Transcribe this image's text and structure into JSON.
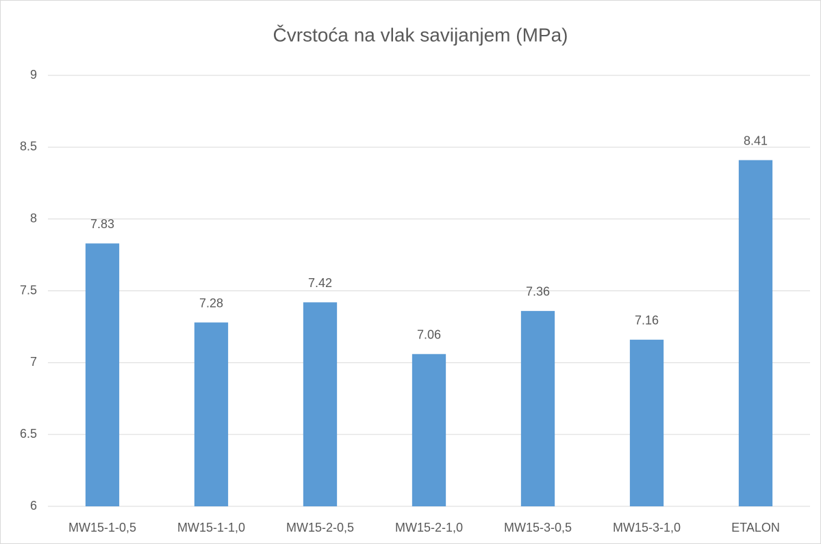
{
  "chart_data": {
    "type": "bar",
    "title": "Čvrstoća na vlak savijanjem (MPa)",
    "categories": [
      "MW15-1-0,5",
      "MW15-1-1,0",
      "MW15-2-0,5",
      "MW15-2-1,0",
      "MW15-3-0,5",
      "MW15-3-1,0",
      "ETALON"
    ],
    "values": [
      7.83,
      7.28,
      7.42,
      7.06,
      7.36,
      7.16,
      8.41
    ],
    "color": "#5b9bd5",
    "ylim": [
      6,
      9
    ],
    "yticks": [
      6,
      6.5,
      7,
      7.5,
      8,
      8.5,
      9
    ],
    "grid": true
  }
}
